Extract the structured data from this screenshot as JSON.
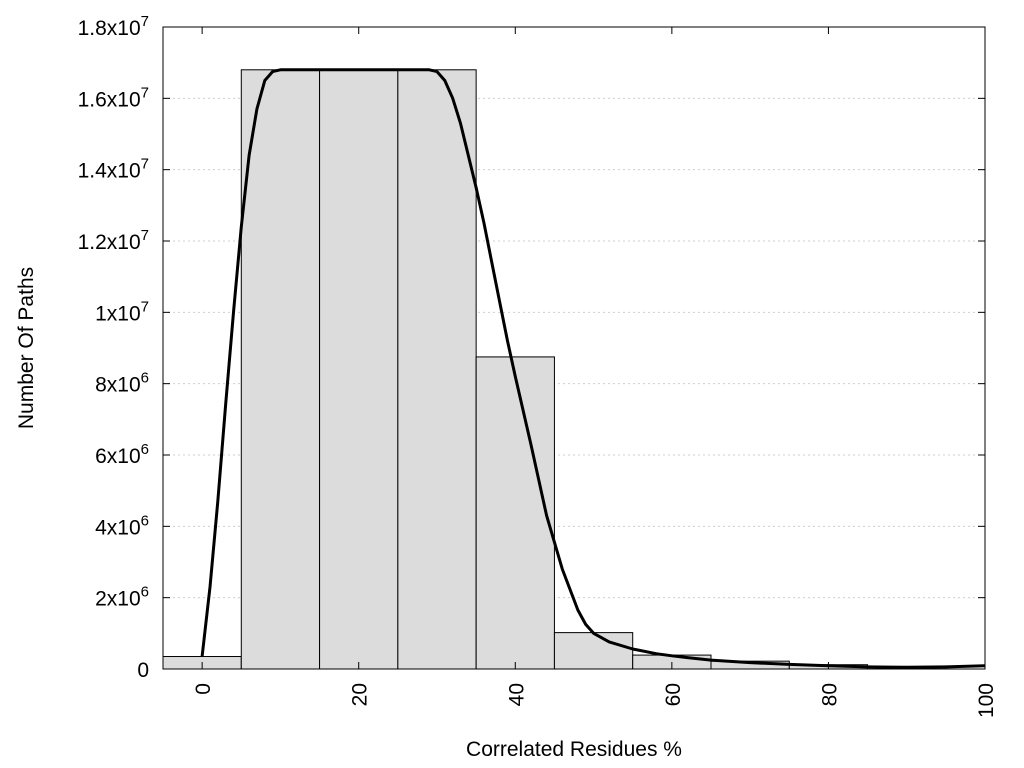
{
  "chart_data": {
    "type": "bar",
    "title": "",
    "xlabel": "Correlated Residues %",
    "ylabel": "Number Of Paths",
    "xlim": [
      -5,
      100
    ],
    "ylim": [
      0,
      18000000
    ],
    "grid": "horizontal dotted",
    "legend": "none",
    "colors": {
      "bar_fill": "#dcdcdc",
      "bar_edge": "#000000",
      "line": "#000000"
    },
    "bars": {
      "width": 10,
      "centers": [
        0,
        10,
        20,
        30,
        40,
        50,
        60,
        70,
        80,
        90
      ],
      "values": [
        350000,
        16800000,
        16800000,
        16800000,
        8750000,
        1020000,
        390000,
        220000,
        120000,
        60000
      ]
    },
    "fit_curve": {
      "x": [
        0,
        1,
        2,
        3,
        4,
        5,
        6,
        7,
        8,
        9,
        10,
        12,
        15,
        18,
        20,
        22,
        25,
        28,
        29,
        30,
        31,
        32,
        33,
        34,
        35,
        36,
        37,
        38,
        39,
        40,
        42,
        44,
        46,
        48,
        49,
        50,
        52,
        55,
        58,
        60,
        62,
        65,
        70,
        75,
        80,
        85,
        90,
        95,
        100
      ],
      "y": [
        350000,
        2300000,
        4700000,
        7400000,
        10000000,
        12400000,
        14400000,
        15700000,
        16500000,
        16750000,
        16800000,
        16800000,
        16800000,
        16800000,
        16800000,
        16800000,
        16800000,
        16800000,
        16800000,
        16750000,
        16500000,
        16000000,
        15300000,
        14400000,
        13500000,
        12500000,
        11400000,
        10300000,
        9200000,
        8200000,
        6300000,
        4300000,
        2800000,
        1650000,
        1250000,
        1000000,
        760000,
        560000,
        430000,
        370000,
        320000,
        250000,
        180000,
        130000,
        90000,
        60000,
        50000,
        60000,
        90000
      ]
    },
    "xticks": {
      "values": [
        0,
        20,
        40,
        60,
        80,
        100
      ],
      "labels": [
        "0",
        "20",
        "40",
        "60",
        "80",
        "100"
      ]
    },
    "yticks": {
      "values": [
        0,
        2000000,
        4000000,
        6000000,
        8000000,
        10000000,
        12000000,
        14000000,
        16000000,
        18000000
      ],
      "labels": [
        {
          "base": "0",
          "exp": ""
        },
        {
          "base": "2x10",
          "exp": "6"
        },
        {
          "base": "4x10",
          "exp": "6"
        },
        {
          "base": "6x10",
          "exp": "6"
        },
        {
          "base": "8x10",
          "exp": "6"
        },
        {
          "base": "1x10",
          "exp": "7"
        },
        {
          "base": "1.2x10",
          "exp": "7"
        },
        {
          "base": "1.4x10",
          "exp": "7"
        },
        {
          "base": "1.6x10",
          "exp": "7"
        },
        {
          "base": "1.8x10",
          "exp": "7"
        }
      ]
    }
  }
}
